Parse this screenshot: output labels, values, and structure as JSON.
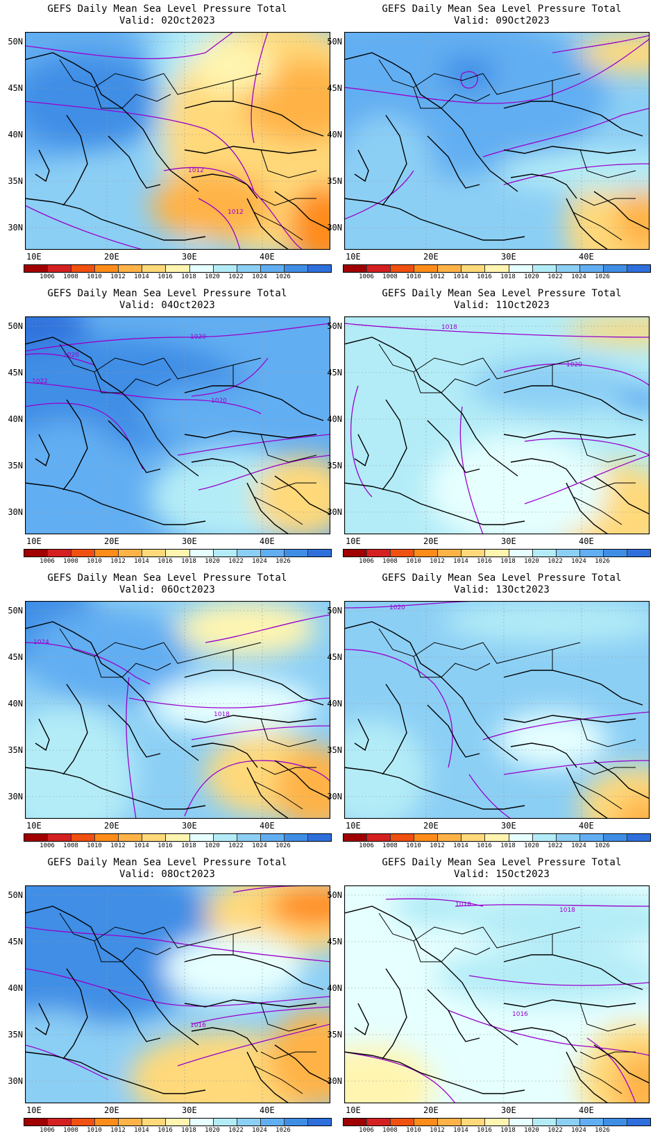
{
  "common": {
    "title": "GEFS Daily Mean Sea Level Pressure Total",
    "lat_labels": [
      "50N",
      "45N",
      "40N",
      "35N",
      "30N"
    ],
    "lon_labels": [
      "10E",
      "20E",
      "30E",
      "40E"
    ],
    "colorbar_labels": [
      "1006",
      "1008",
      "1010",
      "1012",
      "1014",
      "1016",
      "1018",
      "1020",
      "1022",
      "1024",
      "1026"
    ],
    "colorbar_colors": [
      "#a00000",
      "#d42020",
      "#f05010",
      "#ff8c1a",
      "#ffb347",
      "#ffd97a",
      "#fff5b0",
      "#e6ffff",
      "#b3ecf7",
      "#8ccff5",
      "#62aef2",
      "#3f8ee6",
      "#2e6fdc"
    ],
    "contour_color": "#9900cc"
  },
  "panels": [
    {
      "valid": "Valid: 02Oct2023",
      "contour_labels": [
        "1012",
        "1012"
      ]
    },
    {
      "valid": "Valid: 09Oct2023",
      "contour_labels": []
    },
    {
      "valid": "Valid: 04Oct2023",
      "contour_labels": [
        "1020",
        "1020",
        "1022",
        "1020"
      ]
    },
    {
      "valid": "Valid: 11Oct2023",
      "contour_labels": [
        "1018",
        "1020"
      ]
    },
    {
      "valid": "Valid: 06Oct2023",
      "contour_labels": [
        "1024",
        "1018"
      ]
    },
    {
      "valid": "Valid: 13Oct2023",
      "contour_labels": [
        "1020"
      ]
    },
    {
      "valid": "Valid: 08Oct2023",
      "contour_labels": [
        "1016"
      ]
    },
    {
      "valid": "Valid: 15Oct2023",
      "contour_labels": [
        "1018",
        "1018",
        "1016"
      ]
    }
  ]
}
